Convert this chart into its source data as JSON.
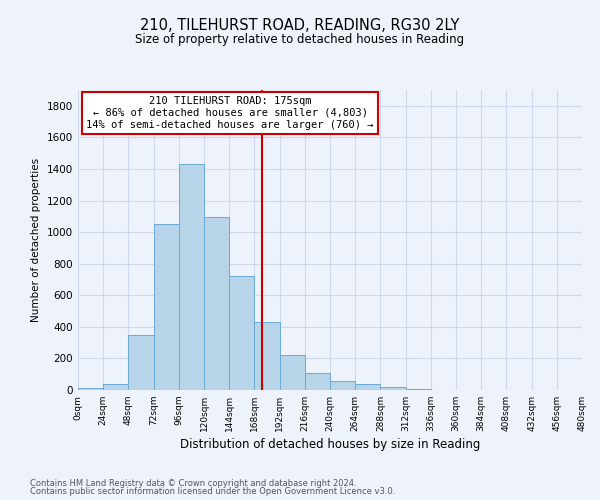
{
  "title": "210, TILEHURST ROAD, READING, RG30 2LY",
  "subtitle": "Size of property relative to detached houses in Reading",
  "xlabel": "Distribution of detached houses by size in Reading",
  "ylabel": "Number of detached properties",
  "bar_color": "#b8d4e8",
  "bar_edge_color": "#6aaad4",
  "vline_x": 175,
  "vline_color": "#cc0000",
  "annotation_title": "210 TILEHURST ROAD: 175sqm",
  "annotation_line1": "← 86% of detached houses are smaller (4,803)",
  "annotation_line2": "14% of semi-detached houses are larger (760) →",
  "annotation_box_color": "#ffffff",
  "annotation_box_edge": "#cc0000",
  "bin_edges": [
    0,
    24,
    48,
    72,
    96,
    120,
    144,
    168,
    192,
    216,
    240,
    264,
    288,
    312,
    336,
    360,
    384,
    408,
    432,
    456,
    480
  ],
  "bar_heights": [
    15,
    35,
    350,
    1050,
    1430,
    1095,
    720,
    430,
    220,
    105,
    55,
    40,
    18,
    8,
    3,
    2,
    1,
    1,
    0,
    0
  ],
  "ylim": [
    0,
    1900
  ],
  "yticks": [
    0,
    200,
    400,
    600,
    800,
    1000,
    1200,
    1400,
    1600,
    1800
  ],
  "xtick_labels": [
    "0sqm",
    "24sqm",
    "48sqm",
    "72sqm",
    "96sqm",
    "120sqm",
    "144sqm",
    "168sqm",
    "192sqm",
    "216sqm",
    "240sqm",
    "264sqm",
    "288sqm",
    "312sqm",
    "336sqm",
    "360sqm",
    "384sqm",
    "408sqm",
    "432sqm",
    "456sqm",
    "480sqm"
  ],
  "footer1": "Contains HM Land Registry data © Crown copyright and database right 2024.",
  "footer2": "Contains public sector information licensed under the Open Government Licence v3.0.",
  "bg_color": "#eef2fb",
  "grid_color": "#d0d8f0"
}
